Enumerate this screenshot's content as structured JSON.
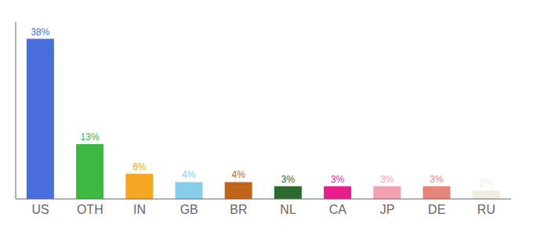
{
  "chart_data": {
    "type": "bar",
    "categories": [
      "US",
      "OTH",
      "IN",
      "GB",
      "BR",
      "NL",
      "CA",
      "JP",
      "DE",
      "RU"
    ],
    "values": [
      38,
      13,
      6,
      4,
      4,
      3,
      3,
      3,
      3,
      2
    ],
    "value_labels": [
      "38%",
      "13%",
      "6%",
      "4%",
      "4%",
      "3%",
      "3%",
      "3%",
      "3%",
      "2%"
    ],
    "colors": [
      "#4a6fdc",
      "#3cb843",
      "#f5a623",
      "#87ceeb",
      "#c1651a",
      "#2d6b2d",
      "#e91e8c",
      "#f4a0b0",
      "#e8857a",
      "#f0ede0"
    ],
    "ylim": [
      0,
      42
    ],
    "data_labels": true,
    "tick_labels": "x"
  }
}
